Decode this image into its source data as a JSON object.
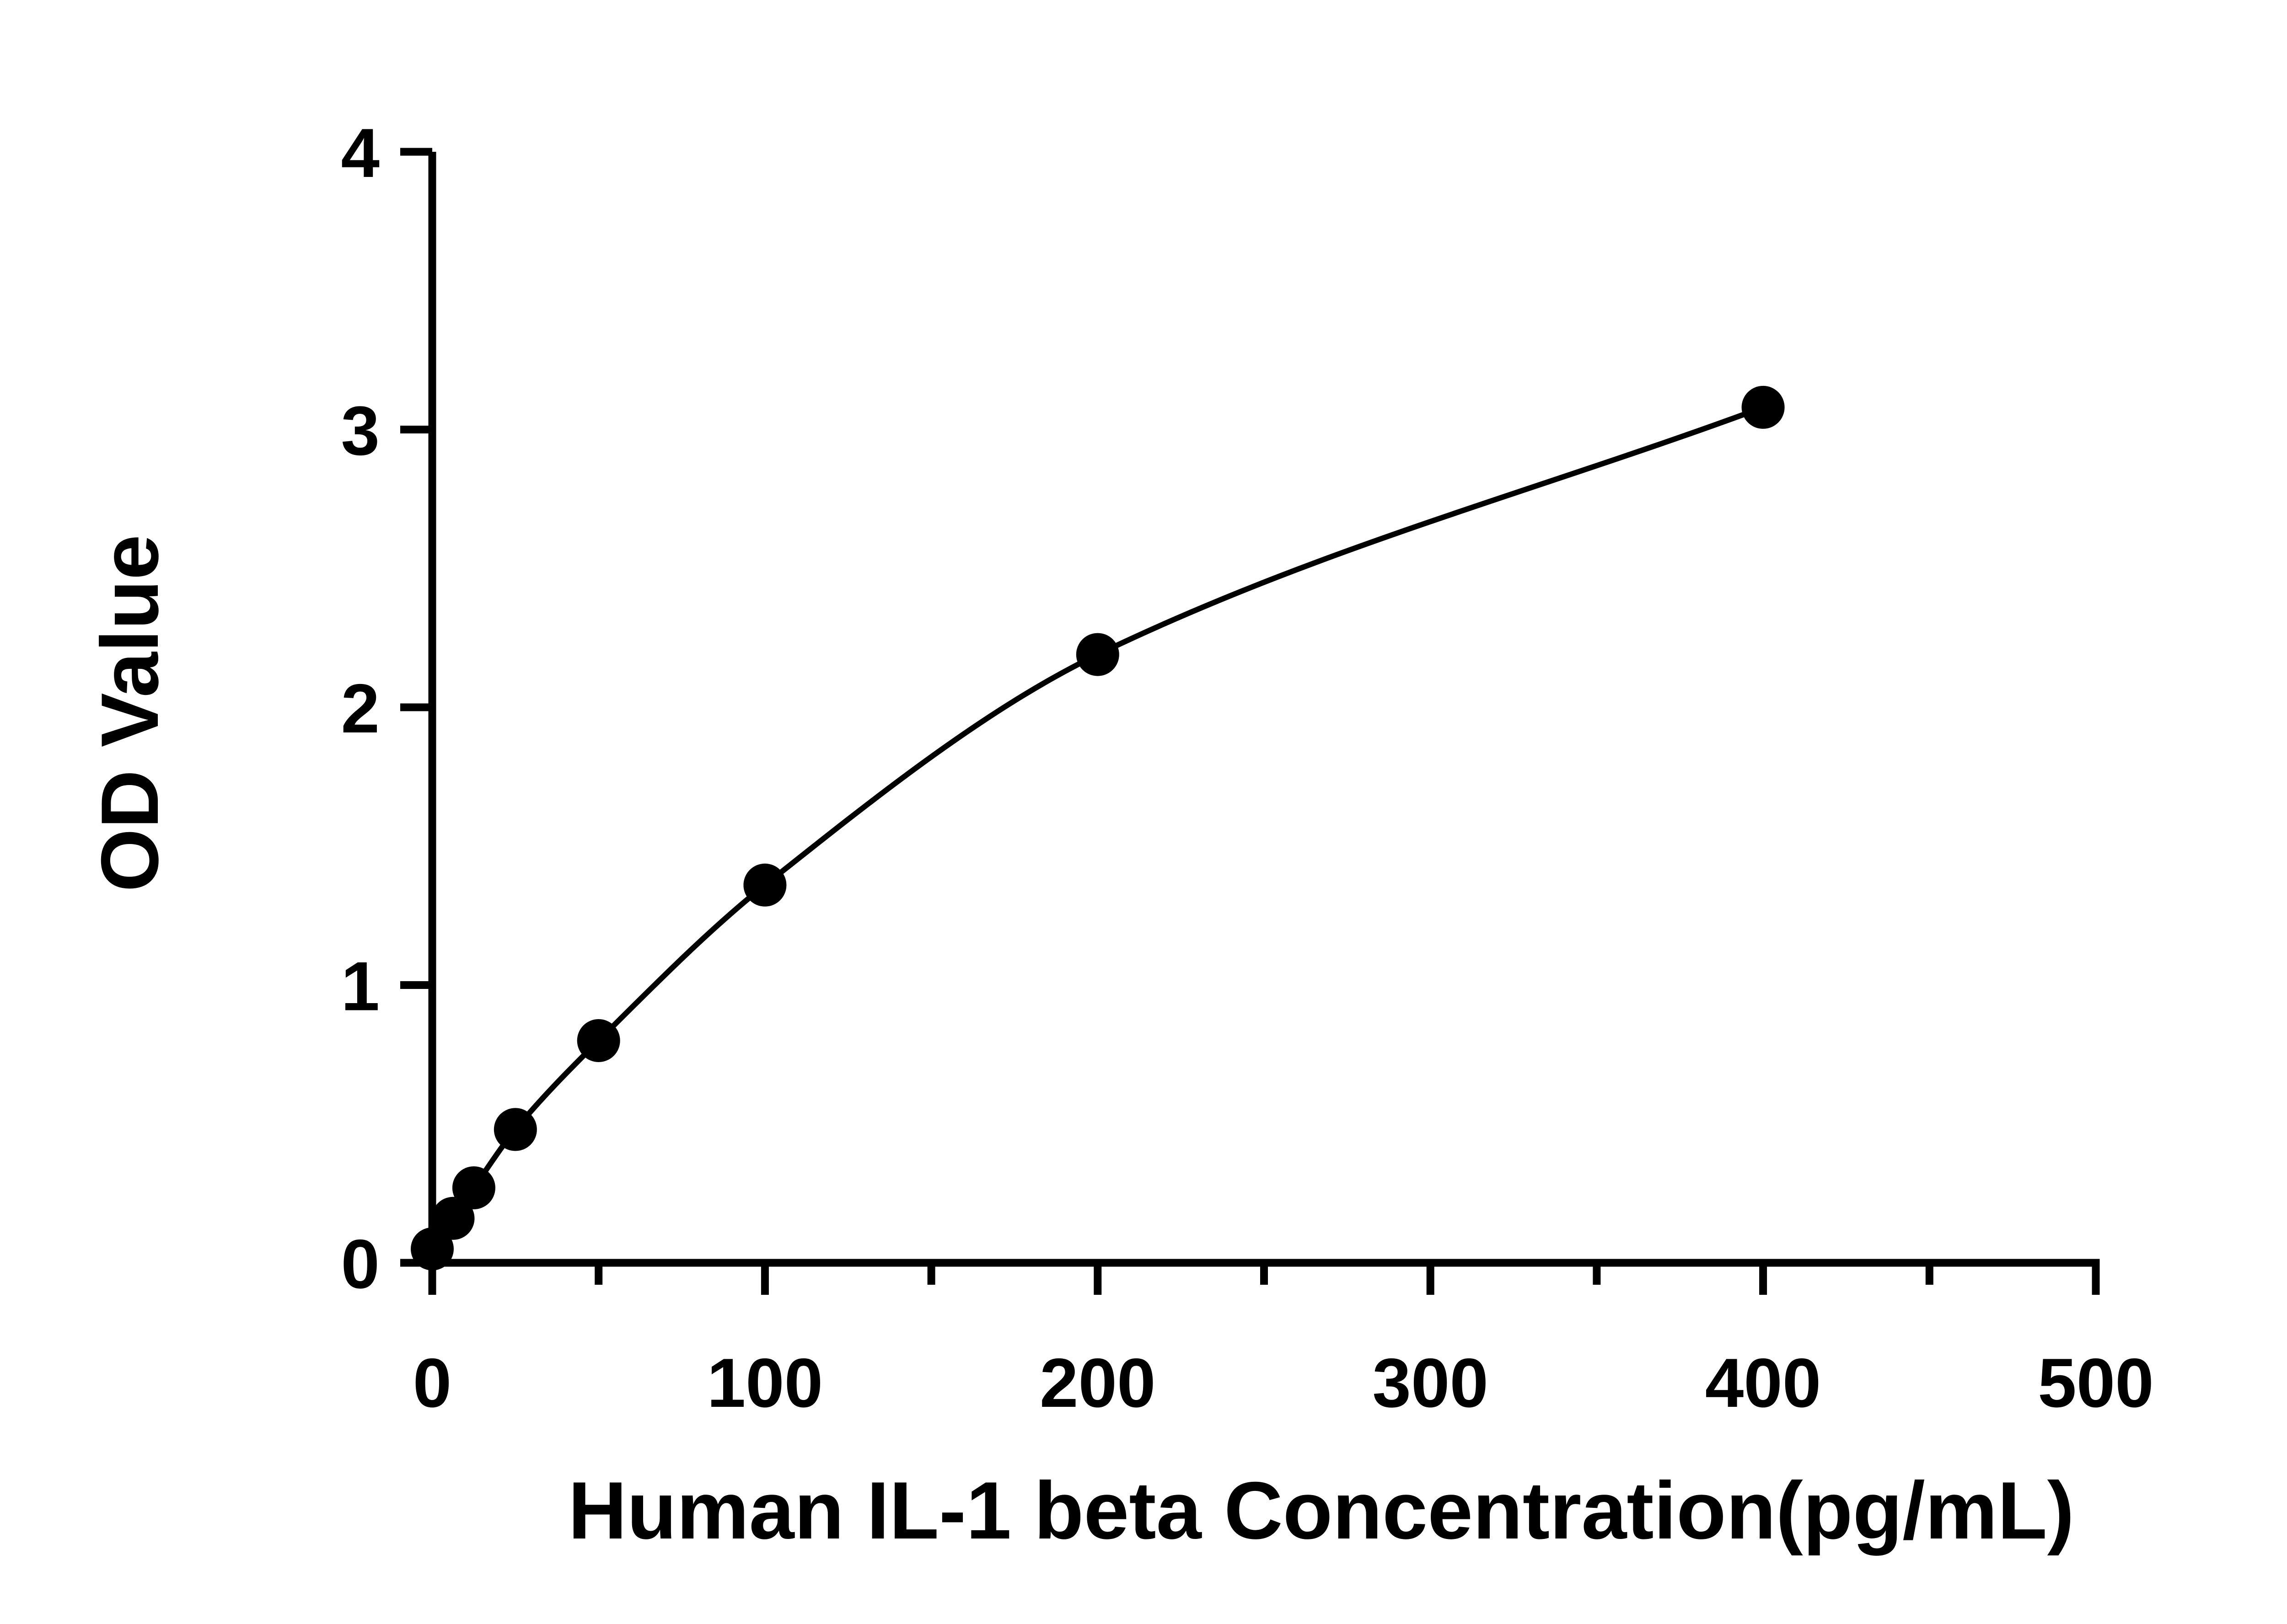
{
  "chart_data": {
    "type": "scatter",
    "xlabel": "Human IL-1 beta Concentration(pg/mL)",
    "ylabel": "OD Value",
    "xlim": [
      0,
      500
    ],
    "ylim": [
      0,
      4
    ],
    "x_ticks": [
      0,
      100,
      200,
      300,
      400,
      500
    ],
    "x_minor_ticks": [
      50,
      150,
      250,
      350,
      450
    ],
    "y_ticks": [
      0,
      1,
      2,
      3,
      4
    ],
    "grid": false,
    "legend": "none",
    "series": [
      {
        "x": [
          0,
          6.25,
          12.5,
          25,
          50,
          100,
          200,
          400
        ],
        "y": [
          0.05,
          0.16,
          0.27,
          0.48,
          0.8,
          1.36,
          2.19,
          3.08
        ],
        "marker": "filled-circle",
        "fit_line": true,
        "color": "#000000"
      }
    ]
  }
}
